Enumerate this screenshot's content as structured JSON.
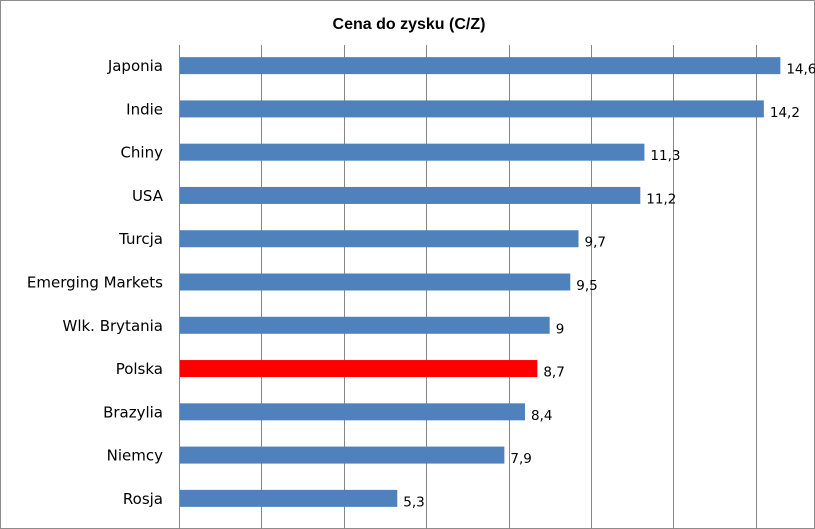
{
  "chart_data": {
    "type": "bar",
    "orientation": "horizontal",
    "title": "Cena do zysku (C/Z)",
    "xlabel": "",
    "ylabel": "",
    "categories": [
      "Japonia",
      "Indie",
      "Chiny",
      "USA",
      "Turcja",
      "Emerging Markets",
      "Wlk. Brytania",
      "Polska",
      "Brazylia",
      "Niemcy",
      "Rosja"
    ],
    "values": [
      14.6,
      14.2,
      11.3,
      11.2,
      9.7,
      9.5,
      9,
      8.7,
      8.4,
      7.9,
      5.3
    ],
    "value_labels": [
      "14,6",
      "14,2",
      "11,3",
      "11,2",
      "9,7",
      "9,5",
      "9",
      "8,7",
      "8,4",
      "7,9",
      "5,3"
    ],
    "xlim": [
      0,
      16
    ],
    "grid": "vertical",
    "legend": "none",
    "colors": {
      "bar": "#4f81bd",
      "highlight": "#ff0000",
      "highlight_category": "Polska",
      "grid": "#868686"
    }
  }
}
